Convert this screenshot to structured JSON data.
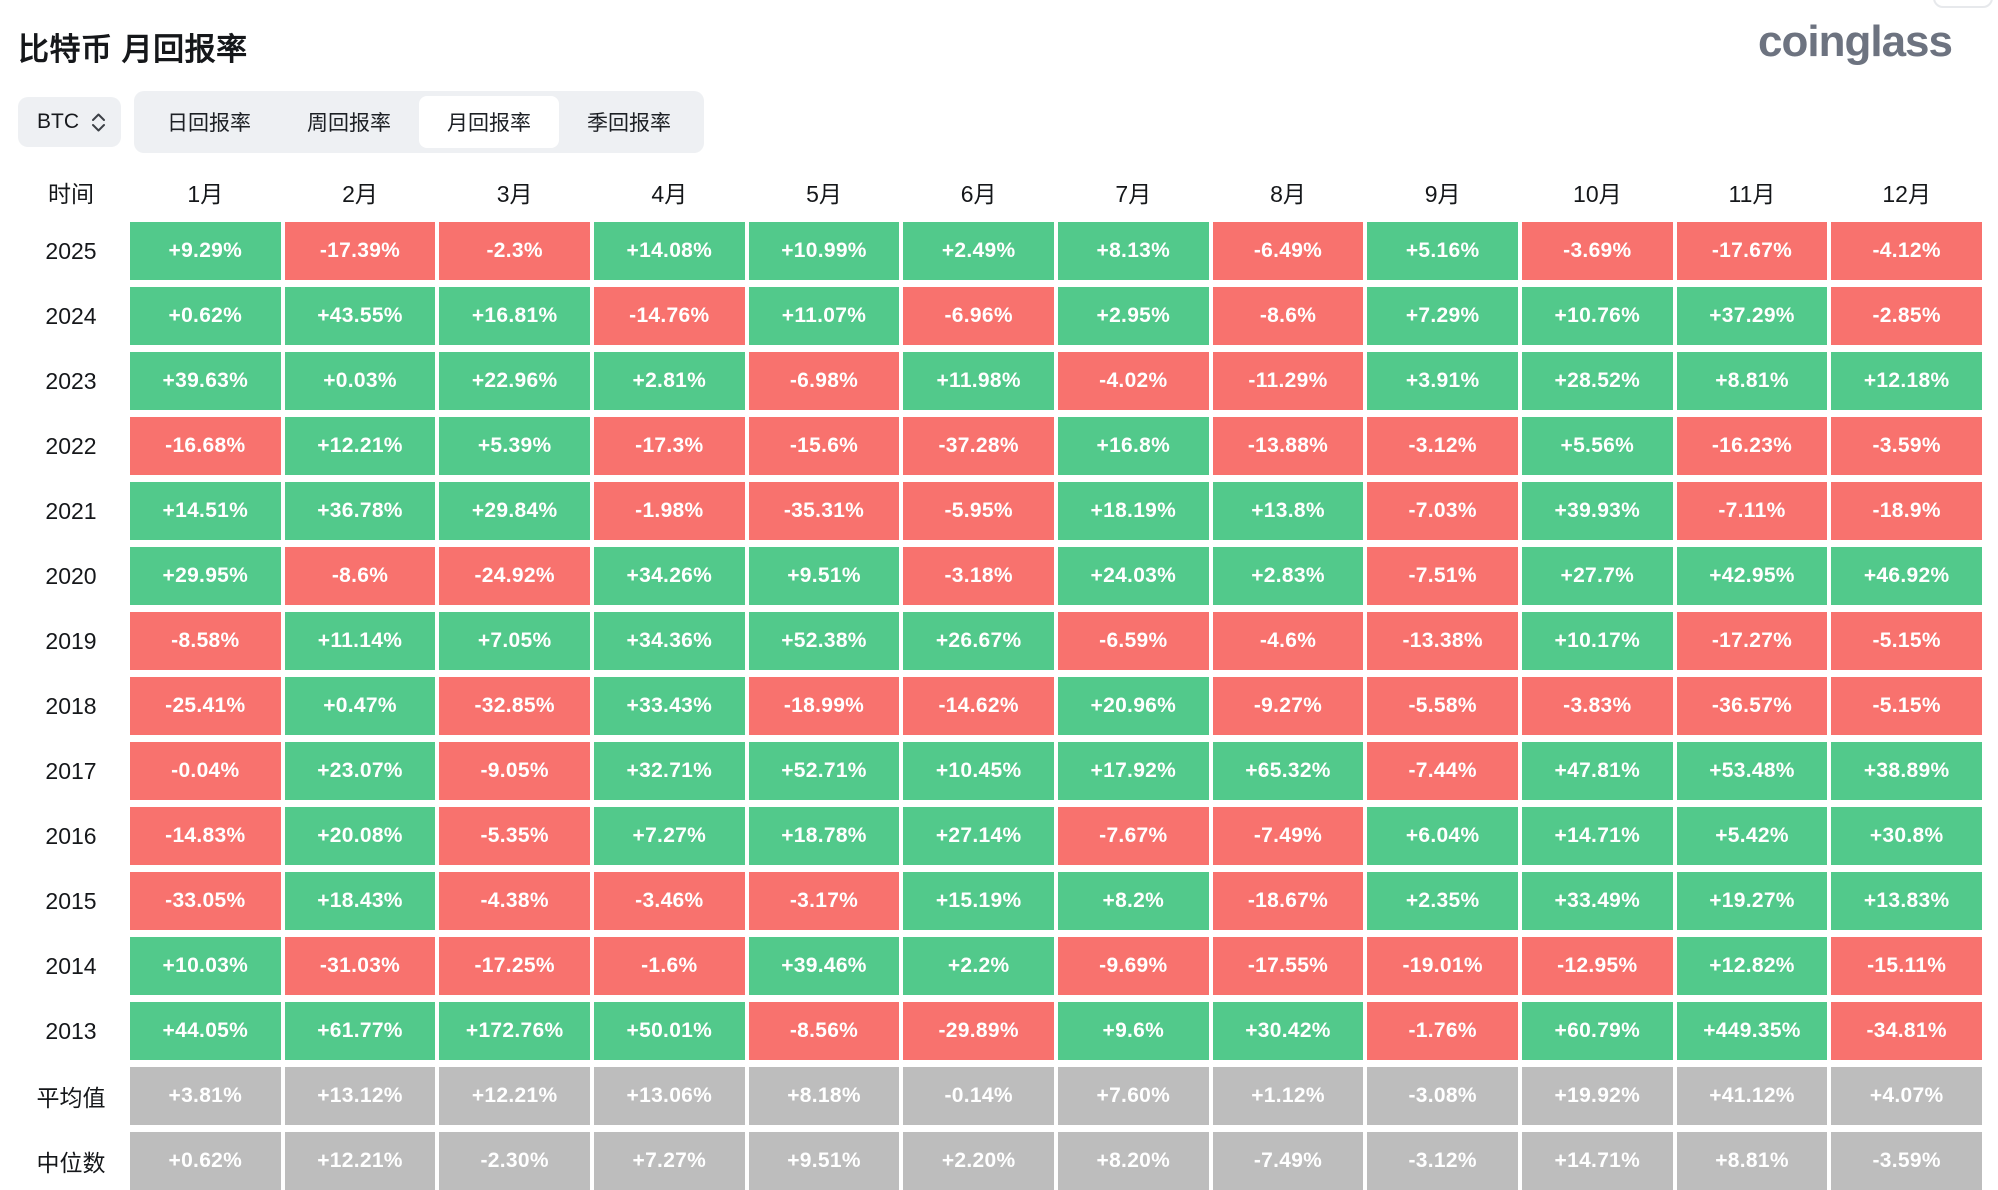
{
  "page": {
    "title": "比特币 月回报率",
    "logo": "coinglass"
  },
  "controls": {
    "coin": "BTC",
    "tabs": [
      {
        "label": "日回报率",
        "active": false
      },
      {
        "label": "周回报率",
        "active": false
      },
      {
        "label": "月回报率",
        "active": true
      },
      {
        "label": "季回报率",
        "active": false
      }
    ]
  },
  "chart_data": {
    "type": "heatmap",
    "title": "比特币 月回报率",
    "columns": [
      "时间",
      "1月",
      "2月",
      "3月",
      "4月",
      "5月",
      "6月",
      "7月",
      "8月",
      "9月",
      "10月",
      "11月",
      "12月"
    ],
    "rows": [
      {
        "label": "2025",
        "type": "year",
        "values": [
          "+9.29%",
          "-17.39%",
          "-2.3%",
          "+14.08%",
          "+10.99%",
          "+2.49%",
          "+8.13%",
          "-6.49%",
          "+5.16%",
          "-3.69%",
          "-17.67%",
          "-4.12%"
        ]
      },
      {
        "label": "2024",
        "type": "year",
        "values": [
          "+0.62%",
          "+43.55%",
          "+16.81%",
          "-14.76%",
          "+11.07%",
          "-6.96%",
          "+2.95%",
          "-8.6%",
          "+7.29%",
          "+10.76%",
          "+37.29%",
          "-2.85%"
        ]
      },
      {
        "label": "2023",
        "type": "year",
        "values": [
          "+39.63%",
          "+0.03%",
          "+22.96%",
          "+2.81%",
          "-6.98%",
          "+11.98%",
          "-4.02%",
          "-11.29%",
          "+3.91%",
          "+28.52%",
          "+8.81%",
          "+12.18%"
        ]
      },
      {
        "label": "2022",
        "type": "year",
        "values": [
          "-16.68%",
          "+12.21%",
          "+5.39%",
          "-17.3%",
          "-15.6%",
          "-37.28%",
          "+16.8%",
          "-13.88%",
          "-3.12%",
          "+5.56%",
          "-16.23%",
          "-3.59%"
        ]
      },
      {
        "label": "2021",
        "type": "year",
        "values": [
          "+14.51%",
          "+36.78%",
          "+29.84%",
          "-1.98%",
          "-35.31%",
          "-5.95%",
          "+18.19%",
          "+13.8%",
          "-7.03%",
          "+39.93%",
          "-7.11%",
          "-18.9%"
        ]
      },
      {
        "label": "2020",
        "type": "year",
        "values": [
          "+29.95%",
          "-8.6%",
          "-24.92%",
          "+34.26%",
          "+9.51%",
          "-3.18%",
          "+24.03%",
          "+2.83%",
          "-7.51%",
          "+27.7%",
          "+42.95%",
          "+46.92%"
        ]
      },
      {
        "label": "2019",
        "type": "year",
        "values": [
          "-8.58%",
          "+11.14%",
          "+7.05%",
          "+34.36%",
          "+52.38%",
          "+26.67%",
          "-6.59%",
          "-4.6%",
          "-13.38%",
          "+10.17%",
          "-17.27%",
          "-5.15%"
        ]
      },
      {
        "label": "2018",
        "type": "year",
        "values": [
          "-25.41%",
          "+0.47%",
          "-32.85%",
          "+33.43%",
          "-18.99%",
          "-14.62%",
          "+20.96%",
          "-9.27%",
          "-5.58%",
          "-3.83%",
          "-36.57%",
          "-5.15%"
        ]
      },
      {
        "label": "2017",
        "type": "year",
        "values": [
          "-0.04%",
          "+23.07%",
          "-9.05%",
          "+32.71%",
          "+52.71%",
          "+10.45%",
          "+17.92%",
          "+65.32%",
          "-7.44%",
          "+47.81%",
          "+53.48%",
          "+38.89%"
        ]
      },
      {
        "label": "2016",
        "type": "year",
        "values": [
          "-14.83%",
          "+20.08%",
          "-5.35%",
          "+7.27%",
          "+18.78%",
          "+27.14%",
          "-7.67%",
          "-7.49%",
          "+6.04%",
          "+14.71%",
          "+5.42%",
          "+30.8%"
        ]
      },
      {
        "label": "2015",
        "type": "year",
        "values": [
          "-33.05%",
          "+18.43%",
          "-4.38%",
          "-3.46%",
          "-3.17%",
          "+15.19%",
          "+8.2%",
          "-18.67%",
          "+2.35%",
          "+33.49%",
          "+19.27%",
          "+13.83%"
        ]
      },
      {
        "label": "2014",
        "type": "year",
        "values": [
          "+10.03%",
          "-31.03%",
          "-17.25%",
          "-1.6%",
          "+39.46%",
          "+2.2%",
          "-9.69%",
          "-17.55%",
          "-19.01%",
          "-12.95%",
          "+12.82%",
          "-15.11%"
        ]
      },
      {
        "label": "2013",
        "type": "year",
        "values": [
          "+44.05%",
          "+61.77%",
          "+172.76%",
          "+50.01%",
          "-8.56%",
          "-29.89%",
          "+9.6%",
          "+30.42%",
          "-1.76%",
          "+60.79%",
          "+449.35%",
          "-34.81%"
        ]
      },
      {
        "label": "平均值",
        "type": "summary",
        "values": [
          "+3.81%",
          "+13.12%",
          "+12.21%",
          "+13.06%",
          "+8.18%",
          "-0.14%",
          "+7.60%",
          "+1.12%",
          "-3.08%",
          "+19.92%",
          "+41.12%",
          "+4.07%"
        ]
      },
      {
        "label": "中位数",
        "type": "summary",
        "values": [
          "+0.62%",
          "+12.21%",
          "-2.30%",
          "+7.27%",
          "+9.51%",
          "+2.20%",
          "+8.20%",
          "-7.49%",
          "-3.12%",
          "+14.71%",
          "+8.81%",
          "-3.59%"
        ]
      }
    ],
    "colors": {
      "positive": "#52c98b",
      "negative": "#f8726e",
      "summary": "#bdbdbd"
    },
    "legend_position": "none",
    "grid": false
  }
}
